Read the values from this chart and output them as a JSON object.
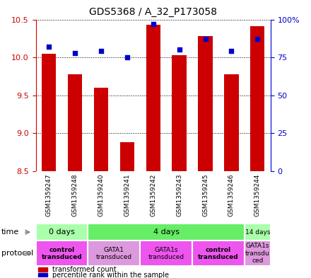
{
  "title": "GDS5368 / A_32_P173058",
  "samples": [
    "GSM1359247",
    "GSM1359248",
    "GSM1359240",
    "GSM1359241",
    "GSM1359242",
    "GSM1359243",
    "GSM1359245",
    "GSM1359246",
    "GSM1359244"
  ],
  "transformed_counts": [
    10.05,
    9.78,
    9.6,
    8.88,
    10.43,
    10.03,
    10.28,
    9.78,
    10.41
  ],
  "percentile_ranks": [
    82,
    78,
    79,
    75,
    97,
    80,
    87,
    79,
    87
  ],
  "ylim_left": [
    8.5,
    10.5
  ],
  "ylim_right": [
    0,
    100
  ],
  "yticks_left": [
    8.5,
    9.0,
    9.5,
    10.0,
    10.5
  ],
  "yticks_right": [
    0,
    25,
    50,
    75,
    100
  ],
  "bar_color": "#cc0000",
  "dot_color": "#0000cc",
  "bar_bottom": 8.5,
  "time_groups": [
    {
      "label": "0 days",
      "start": 0,
      "end": 2,
      "color": "#aaffaa"
    },
    {
      "label": "4 days",
      "start": 2,
      "end": 8,
      "color": "#66ee66"
    },
    {
      "label": "14 days",
      "start": 8,
      "end": 9,
      "color": "#aaffaa"
    }
  ],
  "protocol_groups": [
    {
      "label": "control\ntransduced",
      "start": 0,
      "end": 2,
      "color": "#ee55ee",
      "bold": true
    },
    {
      "label": "GATA1\ntransduced",
      "start": 2,
      "end": 4,
      "color": "#dd99dd",
      "bold": false
    },
    {
      "label": "GATA1s\ntransduced",
      "start": 4,
      "end": 6,
      "color": "#ee55ee",
      "bold": false
    },
    {
      "label": "control\ntransduced",
      "start": 6,
      "end": 8,
      "color": "#ee55ee",
      "bold": true
    },
    {
      "label": "GATA1s\ntransdu\nced",
      "start": 8,
      "end": 9,
      "color": "#dd99dd",
      "bold": false
    }
  ],
  "left_axis_color": "#cc0000",
  "right_axis_color": "#0000cc",
  "sample_box_color": "#cccccc"
}
